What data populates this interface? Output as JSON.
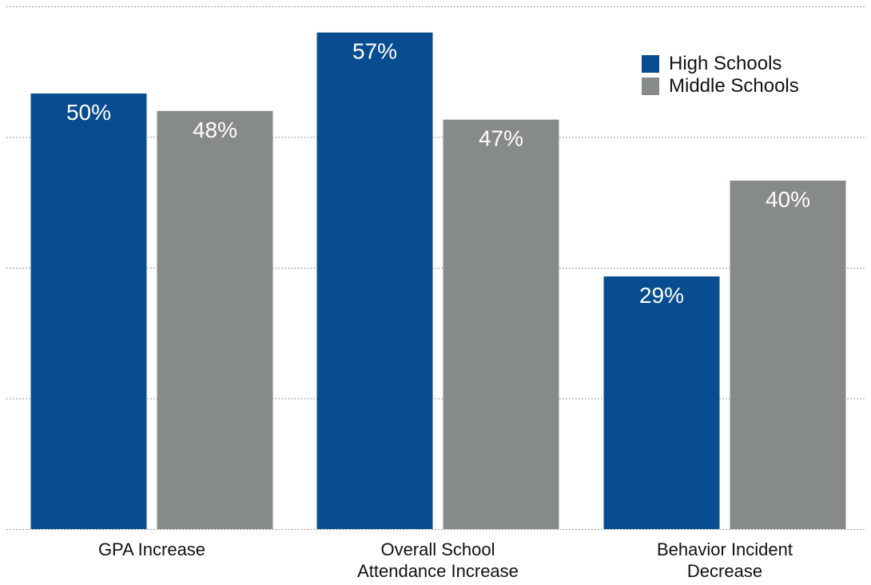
{
  "chart_data": {
    "type": "bar",
    "categories": [
      [
        "GPA Increase"
      ],
      [
        "Overall School",
        "Attendance Increase"
      ],
      [
        "Behavior Incident",
        "Decrease"
      ]
    ],
    "series": [
      {
        "name": "High Schools",
        "values": [
          50,
          57,
          29
        ],
        "labels": [
          "50%",
          "57%",
          "29%"
        ],
        "color": "#084d8f"
      },
      {
        "name": "Middle Schools",
        "values": [
          48,
          47,
          40
        ],
        "labels": [
          "48%",
          "47%",
          "40%"
        ],
        "color": "#868a89"
      }
    ],
    "ylim": [
      0,
      60
    ],
    "y_gridlines": [
      0,
      15,
      30,
      45,
      60
    ],
    "grid": true,
    "legend_position": "top-right",
    "title": "",
    "xlabel": "",
    "ylabel": ""
  }
}
